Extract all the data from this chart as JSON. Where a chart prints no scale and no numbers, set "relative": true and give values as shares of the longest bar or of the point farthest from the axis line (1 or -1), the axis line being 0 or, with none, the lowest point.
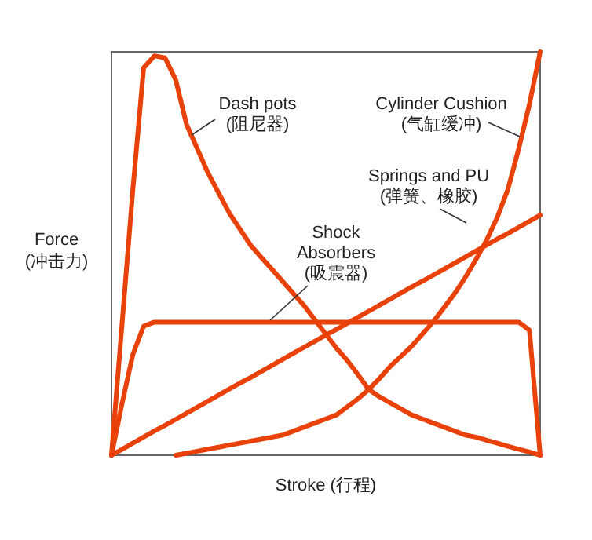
{
  "chart_data": {
    "type": "line",
    "relative": true,
    "xlabel": "Stroke (行程)",
    "ylabel": "Force\n(冲击力)",
    "grid": false,
    "line_style": "solid",
    "categories": [
      null,
      null,
      null,
      null,
      null,
      null,
      null,
      null,
      null,
      null,
      null,
      null,
      null,
      null,
      null,
      null,
      null,
      null,
      null,
      null,
      null,
      null,
      null,
      null,
      null,
      null,
      null,
      null,
      null,
      null,
      null,
      null,
      null,
      null,
      null,
      null,
      null,
      null,
      null,
      null,
      null
    ],
    "series": [
      {
        "color": "#e8420a",
        "values": [
          0,
          0.33,
          0.66,
          0.96,
          0.99,
          0.985,
          0.93,
          0.82,
          0.76,
          0.7,
          0.65,
          0.6,
          0.56,
          0.52,
          0.49,
          0.46,
          0.43,
          0.4,
          0.37,
          0.335,
          0.3,
          0.265,
          0.235,
          0.2,
          0.163,
          0.145,
          0.13,
          0.115,
          0.1,
          0.09,
          0.08,
          0.07,
          0.06,
          0.05,
          0.045,
          0.037,
          0.03,
          0.022,
          0.015,
          0.008,
          0
        ]
      },
      {
        "color": "#e8420a",
        "values": [
          null,
          null,
          null,
          null,
          null,
          null,
          0,
          0.005,
          0.01,
          0.015,
          0.02,
          0.025,
          0.03,
          0.035,
          0.04,
          0.045,
          0.05,
          0.06,
          0.07,
          0.08,
          0.09,
          0.1,
          0.12,
          0.14,
          0.163,
          0.19,
          0.22,
          0.245,
          0.27,
          0.3,
          0.33,
          0.365,
          0.4,
          0.44,
          0.485,
          0.533,
          0.59,
          0.66,
          0.76,
          0.87,
          1
        ]
      },
      {
        "color": "#e8420a",
        "values": [
          0,
          0.015,
          0.03,
          0.045,
          0.06,
          0.074,
          0.089,
          0.104,
          0.119,
          0.134,
          0.149,
          0.164,
          0.179,
          0.193,
          0.208,
          0.223,
          0.238,
          0.253,
          0.268,
          0.283,
          0.298,
          0.312,
          0.327,
          0.342,
          0.357,
          0.372,
          0.387,
          0.402,
          0.417,
          0.431,
          0.446,
          0.461,
          0.476,
          0.491,
          0.506,
          0.521,
          0.536,
          0.55,
          0.565,
          0.58,
          0.595
        ]
      },
      {
        "color": "#e8420a",
        "values": [
          0,
          0.13,
          0.25,
          0.32,
          0.33,
          0.33,
          0.33,
          0.33,
          0.33,
          0.33,
          0.33,
          0.33,
          0.33,
          0.33,
          0.33,
          0.33,
          0.33,
          0.33,
          0.33,
          0.33,
          0.33,
          0.33,
          0.33,
          0.33,
          0.33,
          0.33,
          0.33,
          0.33,
          0.33,
          0.33,
          0.33,
          0.33,
          0.33,
          0.33,
          0.33,
          0.33,
          0.33,
          0.33,
          0.33,
          0.31,
          0
        ]
      }
    ],
    "annotations": [
      "Dash pots\n(阻尼器)",
      "Cylinder Cushion\n(气缸缓冲)",
      "Springs and PU\n(弹簧、橡胶)",
      "Shock\nAbsorbers\n(吸震器)"
    ]
  }
}
